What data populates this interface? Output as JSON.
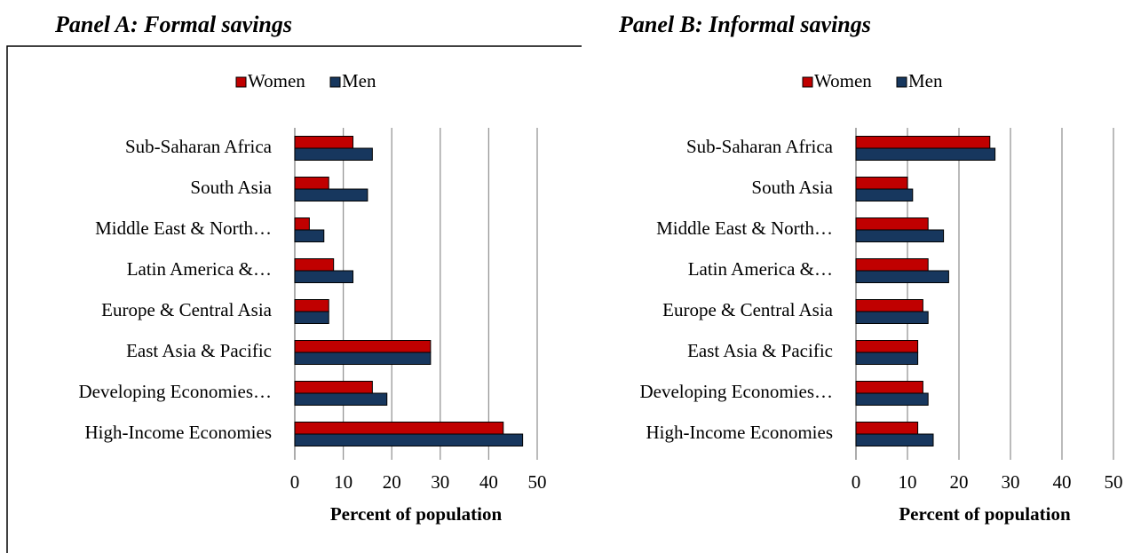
{
  "chart_data": [
    {
      "type": "bar",
      "orientation": "horizontal",
      "title": "Panel A: Formal savings",
      "xlabel": "Percent of population",
      "categories": [
        "Sub-Saharan Africa",
        "South Asia",
        "Middle East & North…",
        "Latin America &…",
        "Europe & Central Asia",
        "East Asia & Pacific",
        "Developing Economies…",
        "High-Income Economies"
      ],
      "series": [
        {
          "name": "Women",
          "color": "#c00000",
          "values": [
            12,
            7,
            3,
            8,
            7,
            28,
            16,
            43
          ]
        },
        {
          "name": "Men",
          "color": "#17375e",
          "values": [
            16,
            15,
            6,
            12,
            7,
            28,
            19,
            47
          ]
        }
      ],
      "xlim": [
        0,
        50
      ],
      "xticks": [
        0,
        10,
        20,
        30,
        40,
        50
      ],
      "grid": true,
      "legend": "top"
    },
    {
      "type": "bar",
      "orientation": "horizontal",
      "title": "Panel B: Informal savings",
      "xlabel": "Percent of population",
      "categories": [
        "Sub-Saharan Africa",
        "South Asia",
        "Middle East & North…",
        "Latin America &…",
        "Europe & Central Asia",
        "East Asia & Pacific",
        "Developing Economies…",
        "High-Income Economies"
      ],
      "series": [
        {
          "name": "Women",
          "color": "#c00000",
          "values": [
            26,
            10,
            14,
            14,
            13,
            12,
            13,
            12
          ]
        },
        {
          "name": "Men",
          "color": "#17375e",
          "values": [
            27,
            11,
            17,
            18,
            14,
            12,
            14,
            15
          ]
        }
      ],
      "xlim": [
        0,
        50
      ],
      "xticks": [
        0,
        10,
        20,
        30,
        40,
        50
      ],
      "grid": true,
      "legend": "top"
    }
  ]
}
